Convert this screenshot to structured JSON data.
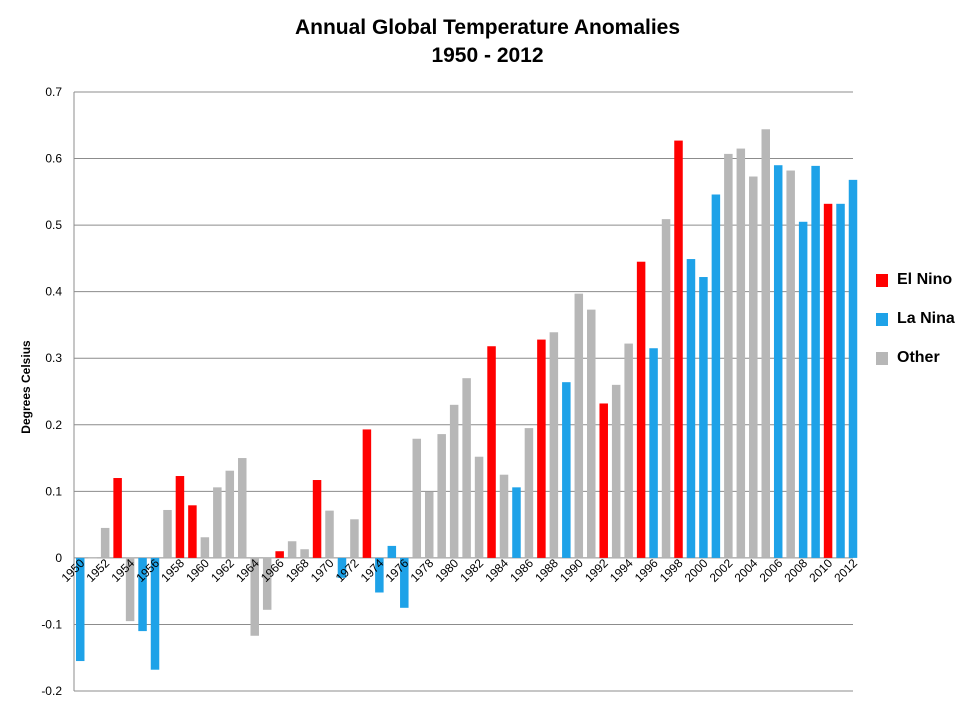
{
  "chart_data": {
    "type": "bar",
    "title": "Annual Global Temperature Anomalies",
    "subtitle": "1950 - 2012",
    "ylabel": "Degrees Celsius",
    "xlabel": "",
    "ylim": [
      -0.2,
      0.7
    ],
    "yticks": [
      "0.7",
      "0.6",
      "0.5",
      "0.4",
      "0.3",
      "0.2",
      "0.1",
      "0",
      "-0.1",
      "-0.2"
    ],
    "ytick_values": [
      0.7,
      0.6,
      0.5,
      0.4,
      0.3,
      0.2,
      0.1,
      0,
      -0.1,
      -0.2
    ],
    "grid": true,
    "legend_position": "right",
    "categories": [
      1950,
      1951,
      1952,
      1953,
      1954,
      1955,
      1956,
      1957,
      1958,
      1959,
      1960,
      1961,
      1962,
      1963,
      1964,
      1965,
      1966,
      1967,
      1968,
      1969,
      1970,
      1971,
      1972,
      1973,
      1974,
      1975,
      1976,
      1977,
      1978,
      1979,
      1980,
      1981,
      1982,
      1983,
      1984,
      1985,
      1986,
      1987,
      1988,
      1989,
      1990,
      1991,
      1992,
      1993,
      1994,
      1995,
      1996,
      1997,
      1998,
      1999,
      2000,
      2001,
      2002,
      2003,
      2004,
      2005,
      2006,
      2007,
      2008,
      2009,
      2010,
      2011,
      2012
    ],
    "xtick_labels": [
      "1950",
      "1952",
      "1954",
      "1956",
      "1958",
      "1960",
      "1962",
      "1964",
      "1966",
      "1968",
      "1970",
      "1972",
      "1974",
      "1976",
      "1978",
      "1980",
      "1982",
      "1984",
      "1986",
      "1988",
      "1990",
      "1992",
      "1994",
      "1996",
      "1998",
      "2000",
      "2002",
      "2004",
      "2006",
      "2008",
      "2010",
      "2012"
    ],
    "values": [
      -0.155,
      0.0,
      0.045,
      0.12,
      -0.095,
      -0.11,
      -0.168,
      0.072,
      0.123,
      0.079,
      0.031,
      0.106,
      0.131,
      0.15,
      -0.117,
      -0.078,
      0.01,
      0.025,
      0.013,
      0.117,
      0.071,
      -0.03,
      0.058,
      0.193,
      -0.052,
      0.018,
      -0.075,
      0.179,
      0.099,
      0.186,
      0.23,
      0.27,
      0.152,
      0.318,
      0.125,
      0.106,
      0.195,
      0.328,
      0.339,
      0.264,
      0.397,
      0.373,
      0.232,
      0.26,
      0.322,
      0.445,
      0.315,
      0.509,
      0.627,
      0.449,
      0.422,
      0.546,
      0.607,
      0.615,
      0.573,
      0.644,
      0.59,
      0.582,
      0.505,
      0.589,
      0.532,
      0.532,
      0.568
    ],
    "types": [
      "L",
      "O",
      "O",
      "E",
      "O",
      "L",
      "L",
      "O",
      "E",
      "E",
      "O",
      "O",
      "O",
      "O",
      "O",
      "O",
      "E",
      "O",
      "O",
      "E",
      "O",
      "L",
      "O",
      "E",
      "L",
      "L",
      "L",
      "O",
      "O",
      "O",
      "O",
      "O",
      "O",
      "E",
      "O",
      "L",
      "O",
      "E",
      "O",
      "L",
      "O",
      "O",
      "E",
      "O",
      "O",
      "E",
      "L",
      "O",
      "E",
      "L",
      "L",
      "L",
      "O",
      "O",
      "O",
      "O",
      "L",
      "O",
      "L",
      "L",
      "E",
      "L",
      "L"
    ],
    "series": [
      {
        "name": "El Nino",
        "key": "E",
        "color": "#ff0000"
      },
      {
        "name": "La Nina",
        "key": "L",
        "color": "#1ea2e8"
      },
      {
        "name": "Other",
        "key": "O",
        "color": "#b7b7b7"
      }
    ]
  }
}
